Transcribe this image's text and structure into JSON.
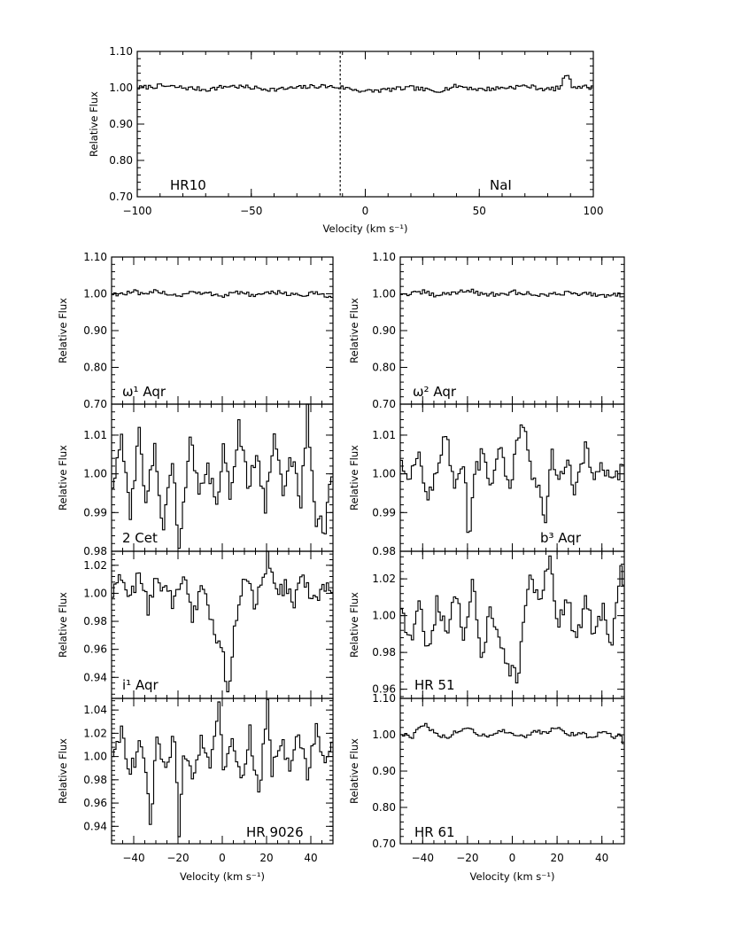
{
  "chart_data": [
    {
      "id": "hr10",
      "type": "line",
      "label": "HR10",
      "label2": "NaI",
      "xlabel": "Velocity (km s⁻¹)",
      "ylabel": "Relative Flux",
      "xlim": [
        -100,
        100
      ],
      "ylim": [
        0.7,
        1.1
      ],
      "xticks": [
        -100,
        -50,
        0,
        50,
        100
      ],
      "xtick_labels": [
        "−100",
        "−50",
        "0",
        "50",
        "100"
      ],
      "yticks": [
        0.7,
        0.8,
        0.9,
        1.0,
        1.1
      ],
      "ytick_labels": [
        "0.70",
        "0.80",
        "0.90",
        "1.00",
        "1.10"
      ],
      "vline": -11,
      "series": [
        {
          "x": [
            -100,
            -90,
            -80,
            -70,
            -60,
            -50,
            -40,
            -30,
            -20,
            -10,
            0,
            10,
            20,
            30,
            40,
            50,
            60,
            70,
            80,
            85,
            88,
            90,
            100
          ],
          "y": [
            1.0,
            1.005,
            1.0,
            0.995,
            1.005,
            1.0,
            0.995,
            1.0,
            1.005,
            1.0,
            0.99,
            0.995,
            1.0,
            0.99,
            1.005,
            0.995,
            1.0,
            1.005,
            0.995,
            1.0,
            1.045,
            1.005,
            1.0
          ]
        }
      ]
    },
    {
      "id": "omega1",
      "type": "line",
      "label": "ω¹ Aqr",
      "xlabel": "",
      "ylabel": "Relative Flux",
      "xlim": [
        -50,
        50
      ],
      "ylim": [
        0.7,
        1.1
      ],
      "yticks": [
        0.7,
        0.8,
        0.9,
        1.0,
        1.1
      ],
      "ytick_labels": [
        "0.70",
        "0.80",
        "0.90",
        "1.00",
        "1.10"
      ],
      "series": [
        {
          "x": [
            -50,
            -45,
            -40,
            -35,
            -30,
            -25,
            -20,
            -15,
            -10,
            -5,
            0,
            5,
            10,
            15,
            20,
            25,
            30,
            35,
            40,
            45,
            50
          ],
          "y": [
            1.0,
            1.0,
            1.005,
            0.995,
            1.01,
            1.0,
            0.995,
            1.005,
            1.0,
            1.0,
            0.995,
            1.005,
            1.0,
            0.995,
            1.0,
            1.005,
            1.0,
            0.995,
            1.0,
            1.0,
            0.985
          ]
        }
      ]
    },
    {
      "id": "omega2",
      "type": "line",
      "label": "ω² Aqr",
      "xlabel": "",
      "ylabel": "Relative Flux",
      "xlim": [
        -50,
        50
      ],
      "ylim": [
        0.7,
        1.1
      ],
      "yticks": [
        0.7,
        0.8,
        0.9,
        1.0,
        1.1
      ],
      "ytick_labels": [
        "0.70",
        "0.80",
        "0.90",
        "1.00",
        "1.10"
      ],
      "series": [
        {
          "x": [
            -50,
            -45,
            -40,
            -35,
            -30,
            -25,
            -20,
            -15,
            -10,
            -5,
            0,
            5,
            10,
            15,
            20,
            25,
            30,
            35,
            40,
            45,
            50
          ],
          "y": [
            1.0,
            1.0,
            1.005,
            0.995,
            1.0,
            1.005,
            1.01,
            1.0,
            1.0,
            0.995,
            1.005,
            1.0,
            1.0,
            0.995,
            1.0,
            1.005,
            1.0,
            1.0,
            0.995,
            1.0,
            0.995
          ]
        }
      ]
    },
    {
      "id": "2cet",
      "type": "line",
      "label": "2 Cet",
      "xlabel": "",
      "ylabel": "Relative Flux",
      "xlim": [
        -50,
        50
      ],
      "ylim": [
        0.98,
        1.018
      ],
      "yticks": [
        0.98,
        0.99,
        1.0,
        1.01
      ],
      "ytick_labels": [
        "0.98",
        "0.99",
        "1.00",
        "1.01"
      ],
      "series": [
        {
          "x": [
            -50,
            -46,
            -42,
            -38,
            -35,
            -31,
            -27,
            -23,
            -20,
            -18,
            -15,
            -11,
            -7,
            -3,
            0,
            3,
            7,
            11,
            15,
            19,
            23,
            27,
            31,
            35,
            38,
            42,
            46,
            50
          ],
          "y": [
            0.997,
            1.008,
            0.99,
            1.011,
            0.993,
            1.006,
            0.985,
            1.004,
            0.981,
            0.993,
            1.009,
            0.996,
            1.002,
            0.992,
            1.008,
            0.994,
            1.013,
            0.997,
            1.005,
            0.992,
            1.01,
            0.996,
            1.004,
            0.993,
            1.016,
            0.988,
            0.986,
            1.004
          ]
        }
      ]
    },
    {
      "id": "b3aqr",
      "type": "line",
      "label": "b³ Aqr",
      "xlabel": "",
      "ylabel": "Relative Flux",
      "xlim": [
        -50,
        50
      ],
      "ylim": [
        0.98,
        1.018
      ],
      "yticks": [
        0.98,
        0.99,
        1.0,
        1.01
      ],
      "ytick_labels": [
        "0.98",
        "0.99",
        "1.00",
        "1.01"
      ],
      "series": [
        {
          "x": [
            -50,
            -46,
            -42,
            -38,
            -34,
            -30,
            -26,
            -22,
            -20,
            -17,
            -14,
            -10,
            -6,
            -2,
            2,
            4,
            8,
            12,
            14,
            17,
            20,
            24,
            28,
            32,
            36,
            40,
            44,
            48,
            50
          ],
          "y": [
            1.004,
            0.998,
            1.006,
            0.993,
            1.002,
            1.01,
            0.996,
            1.003,
            0.982,
            1.0,
            1.005,
            0.996,
            1.007,
            0.995,
            1.009,
            1.016,
            1.0,
            0.994,
            0.986,
            1.006,
            0.999,
            1.004,
            0.995,
            1.007,
            0.998,
            1.002,
            0.997,
            1.001,
            1.006
          ]
        }
      ]
    },
    {
      "id": "i1aqr",
      "type": "line",
      "label": "i¹ Aqr",
      "xlabel": "",
      "ylabel": "Relative Flux",
      "xlim": [
        -50,
        50
      ],
      "ylim": [
        0.925,
        1.03
      ],
      "yticks": [
        0.94,
        0.96,
        0.98,
        1.0,
        1.02
      ],
      "ytick_labels": [
        "0.94",
        "0.96",
        "0.98",
        "1.00",
        "1.02"
      ],
      "series": [
        {
          "x": [
            -50,
            -46,
            -42,
            -38,
            -34,
            -30,
            -26,
            -22,
            -18,
            -14,
            -10,
            -6,
            -3,
            0,
            2,
            4,
            7,
            10,
            14,
            18,
            20,
            24,
            28,
            32,
            36,
            40,
            44,
            50
          ],
          "y": [
            0.998,
            1.012,
            0.995,
            1.018,
            0.99,
            1.01,
            1.002,
            0.993,
            1.014,
            0.985,
            1.004,
            0.985,
            0.965,
            0.955,
            0.927,
            0.96,
            0.995,
            1.01,
            0.993,
            1.008,
            1.028,
            0.998,
            1.006,
            0.992,
            1.015,
            0.996,
            1.003,
            1.005
          ]
        }
      ]
    },
    {
      "id": "hr51",
      "type": "line",
      "label": "HR 51",
      "xlabel": "",
      "ylabel": "Relative Flux",
      "xlim": [
        -50,
        50
      ],
      "ylim": [
        0.955,
        1.035
      ],
      "yticks": [
        0.96,
        0.98,
        1.0,
        1.02
      ],
      "ytick_labels": [
        "0.96",
        "0.98",
        "1.00",
        "1.02"
      ],
      "series": [
        {
          "x": [
            -50,
            -46,
            -42,
            -38,
            -34,
            -30,
            -26,
            -22,
            -18,
            -14,
            -10,
            -6,
            -2,
            0,
            2,
            4,
            8,
            12,
            16,
            20,
            24,
            28,
            32,
            36,
            40,
            44,
            48,
            50
          ],
          "y": [
            1.004,
            0.985,
            1.012,
            0.978,
            1.008,
            0.99,
            1.015,
            0.985,
            1.02,
            0.977,
            1.006,
            0.983,
            0.97,
            0.975,
            0.958,
            0.99,
            1.022,
            1.002,
            1.032,
            0.995,
            1.01,
            0.986,
            1.008,
            0.99,
            1.004,
            0.983,
            1.027,
            1.01
          ]
        }
      ]
    },
    {
      "id": "hr9026",
      "type": "line",
      "label": "HR 9026",
      "xlabel": "Velocity (km s⁻¹)",
      "ylabel": "Relative Flux",
      "xlim": [
        -50,
        50
      ],
      "ylim": [
        0.925,
        1.05
      ],
      "yticks": [
        0.94,
        0.96,
        0.98,
        1.0,
        1.02,
        1.04
      ],
      "ytick_labels": [
        "0.94",
        "0.96",
        "0.98",
        "1.00",
        "1.02",
        "1.04"
      ],
      "xticks": [
        -40,
        -20,
        0,
        20,
        40
      ],
      "xtick_labels": [
        "−40",
        "−20",
        "0",
        "20",
        "40"
      ],
      "series": [
        {
          "x": [
            -50,
            -46,
            -42,
            -38,
            -35,
            -33,
            -30,
            -26,
            -22,
            -20,
            -18,
            -14,
            -10,
            -6,
            -2,
            0,
            4,
            8,
            12,
            16,
            20,
            22,
            26,
            30,
            34,
            38,
            42,
            46,
            50
          ],
          "y": [
            1.0,
            1.025,
            0.985,
            1.01,
            0.99,
            0.938,
            1.015,
            0.99,
            1.02,
            0.932,
            1.005,
            0.985,
            1.015,
            0.992,
            1.045,
            0.995,
            1.01,
            0.98,
            1.022,
            0.965,
            1.047,
            0.99,
            1.015,
            0.985,
            1.02,
            0.982,
            1.028,
            0.995,
            1.01
          ]
        }
      ]
    },
    {
      "id": "hr61",
      "type": "line",
      "label": "HR 61",
      "xlabel": "Velocity (km s⁻¹)",
      "ylabel": "Relative Flux",
      "xlim": [
        -50,
        50
      ],
      "ylim": [
        0.7,
        1.1
      ],
      "yticks": [
        0.7,
        0.8,
        0.9,
        1.0,
        1.1
      ],
      "ytick_labels": [
        "0.70",
        "0.80",
        "0.90",
        "1.00",
        "1.10"
      ],
      "xticks": [
        -40,
        -20,
        0,
        20,
        40
      ],
      "xtick_labels": [
        "−40",
        "−20",
        "0",
        "20",
        "40"
      ],
      "series": [
        {
          "x": [
            -50,
            -45,
            -40,
            -35,
            -30,
            -25,
            -20,
            -15,
            -10,
            -5,
            0,
            5,
            10,
            15,
            20,
            25,
            30,
            35,
            40,
            45,
            48,
            50
          ],
          "y": [
            1.0,
            0.995,
            1.03,
            1.005,
            0.99,
            1.01,
            1.02,
            1.0,
            0.995,
            1.01,
            1.0,
            0.995,
            1.01,
            1.005,
            1.025,
            1.0,
            1.005,
            0.99,
            1.01,
            0.995,
            1.0,
            0.955
          ]
        }
      ]
    }
  ]
}
